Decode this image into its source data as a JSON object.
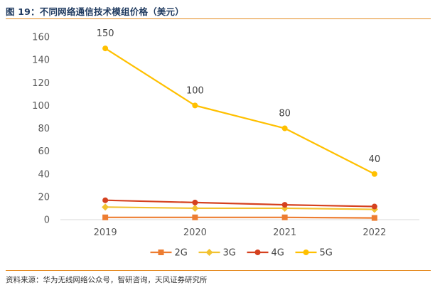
{
  "figure": {
    "title": "图 19：不同网络通信技术模组价格（美元）",
    "source": "资料来源：华为无线网络公众号，智研咨询，天风证券研究所"
  },
  "colors": {
    "accent_rule": "#e58a1f",
    "title": "#1f3a5f",
    "axis": "#d9d9d9"
  },
  "chart_data": {
    "type": "line",
    "title": "",
    "xlabel": "",
    "ylabel": "",
    "categories": [
      "2019",
      "2020",
      "2021",
      "2022"
    ],
    "ylim": [
      0,
      160
    ],
    "yticks": [
      0,
      20,
      40,
      60,
      80,
      100,
      120,
      140,
      160
    ],
    "grid": false,
    "legend": "bottom",
    "series": [
      {
        "name": "2G",
        "values": [
          2,
          2,
          2,
          1.5
        ],
        "color": "#ed7d31",
        "marker": "square",
        "labels": false
      },
      {
        "name": "3G",
        "values": [
          11,
          10,
          10,
          9
        ],
        "color": "#f2c230",
        "marker": "diamond",
        "labels": false
      },
      {
        "name": "4G",
        "values": [
          17,
          15,
          13,
          11.5
        ],
        "color": "#d5411f",
        "marker": "circle",
        "labels": false
      },
      {
        "name": "5G",
        "values": [
          150,
          100,
          80,
          40
        ],
        "color": "#ffc000",
        "marker": "circle",
        "labels": true
      }
    ]
  }
}
